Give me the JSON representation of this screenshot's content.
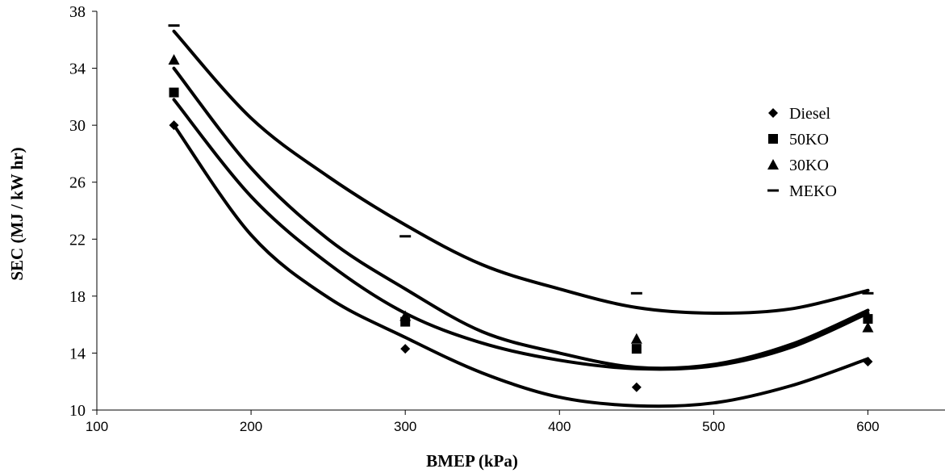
{
  "chart_data": {
    "type": "line",
    "title": "",
    "xlabel": "BMEP (kPa)",
    "ylabel": "SEC (MJ / kW hr)",
    "xlim": [
      100,
      650
    ],
    "ylim": [
      10,
      38
    ],
    "xticks": [
      100,
      200,
      300,
      400,
      500,
      600
    ],
    "yticks": [
      10,
      14,
      18,
      22,
      26,
      30,
      34,
      38
    ],
    "grid": false,
    "legend_position": "right",
    "color": "#000000",
    "series": [
      {
        "name": "Diesel",
        "marker": "diamond",
        "points": [
          [
            150,
            30.0
          ],
          [
            300,
            14.3
          ],
          [
            450,
            11.6
          ],
          [
            600,
            13.4
          ]
        ],
        "curve": [
          [
            150,
            30.0
          ],
          [
            200,
            22.3
          ],
          [
            250,
            17.9
          ],
          [
            300,
            15.1
          ],
          [
            350,
            12.6
          ],
          [
            400,
            10.9
          ],
          [
            450,
            10.3
          ],
          [
            500,
            10.5
          ],
          [
            550,
            11.7
          ],
          [
            600,
            13.6
          ]
        ]
      },
      {
        "name": "50KO",
        "marker": "square",
        "points": [
          [
            150,
            32.3
          ],
          [
            300,
            16.2
          ],
          [
            450,
            14.3
          ],
          [
            600,
            16.4
          ]
        ],
        "curve": [
          [
            150,
            31.8
          ],
          [
            200,
            25.0
          ],
          [
            250,
            20.3
          ],
          [
            300,
            16.8
          ],
          [
            350,
            14.7
          ],
          [
            400,
            13.5
          ],
          [
            450,
            12.9
          ],
          [
            500,
            13.1
          ],
          [
            550,
            14.4
          ],
          [
            600,
            16.8
          ]
        ]
      },
      {
        "name": "30KO",
        "marker": "triangle",
        "points": [
          [
            150,
            34.6
          ],
          [
            300,
            16.6
          ],
          [
            450,
            15.0
          ],
          [
            600,
            15.8
          ]
        ],
        "curve": [
          [
            150,
            34.0
          ],
          [
            200,
            27.0
          ],
          [
            250,
            22.0
          ],
          [
            300,
            18.5
          ],
          [
            350,
            15.5
          ],
          [
            400,
            14.0
          ],
          [
            450,
            13.0
          ],
          [
            500,
            13.2
          ],
          [
            550,
            14.6
          ],
          [
            600,
            17.0
          ]
        ]
      },
      {
        "name": "MEKO",
        "marker": "dash",
        "points": [
          [
            150,
            37.0
          ],
          [
            300,
            22.2
          ],
          [
            450,
            18.2
          ],
          [
            600,
            18.2
          ]
        ],
        "curve": [
          [
            150,
            36.6
          ],
          [
            200,
            30.5
          ],
          [
            250,
            26.4
          ],
          [
            300,
            23.0
          ],
          [
            350,
            20.2
          ],
          [
            400,
            18.5
          ],
          [
            450,
            17.2
          ],
          [
            500,
            16.8
          ],
          [
            550,
            17.1
          ],
          [
            600,
            18.4
          ]
        ]
      }
    ]
  }
}
